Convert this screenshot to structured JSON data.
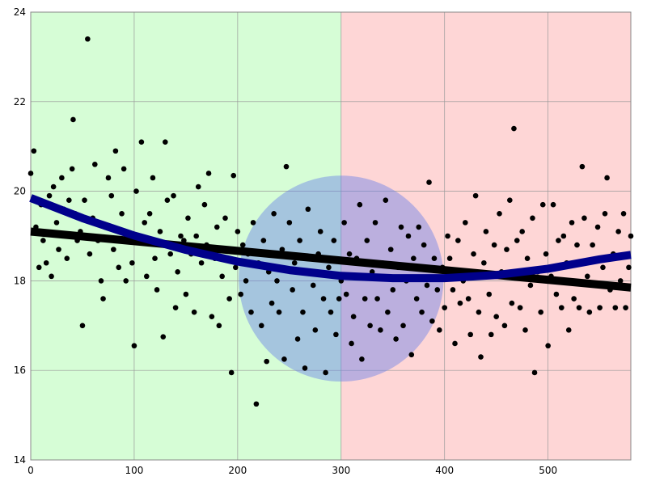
{
  "chart_data": {
    "type": "scatter",
    "xlim": [
      0,
      580
    ],
    "ylim": [
      14,
      24
    ],
    "xticks": [
      0,
      100,
      200,
      300,
      400,
      500
    ],
    "yticks": [
      14,
      16,
      18,
      20,
      22,
      24
    ],
    "grid": true,
    "regions": [
      {
        "xlim": [
          0,
          300
        ],
        "color": "#d6fdd6"
      },
      {
        "xlim": [
          300,
          580
        ],
        "color": "#fed6d6"
      }
    ],
    "circle": {
      "cx": 300,
      "cy": 18.05,
      "rx": 99,
      "ry": 2.3,
      "color": "#6a80e8",
      "opacity": 0.45
    },
    "points": {
      "color": "#000000",
      "x": [
        0,
        3,
        5,
        8,
        10,
        12,
        15,
        18,
        20,
        22,
        25,
        27,
        30,
        32,
        35,
        37,
        40,
        41,
        43,
        45,
        48,
        50,
        52,
        55,
        57,
        60,
        62,
        65,
        68,
        70,
        72,
        75,
        78,
        80,
        82,
        85,
        88,
        90,
        92,
        95,
        98,
        100,
        102,
        105,
        107,
        110,
        112,
        115,
        118,
        120,
        122,
        125,
        128,
        130,
        132,
        135,
        138,
        140,
        142,
        145,
        148,
        150,
        152,
        155,
        158,
        160,
        162,
        165,
        168,
        170,
        172,
        175,
        178,
        180,
        182,
        185,
        188,
        190,
        192,
        194,
        196,
        198,
        200,
        203,
        205,
        208,
        210,
        213,
        215,
        218,
        220,
        223,
        225,
        228,
        230,
        233,
        235,
        238,
        240,
        243,
        245,
        247,
        250,
        253,
        255,
        258,
        260,
        263,
        265,
        268,
        270,
        273,
        275,
        278,
        280,
        283,
        285,
        288,
        290,
        293,
        295,
        298,
        300,
        303,
        305,
        308,
        310,
        312,
        315,
        318,
        320,
        323,
        325,
        328,
        330,
        333,
        335,
        338,
        340,
        343,
        345,
        348,
        350,
        353,
        355,
        358,
        360,
        363,
        365,
        368,
        370,
        373,
        375,
        378,
        380,
        383,
        385,
        388,
        390,
        393,
        395,
        398,
        400,
        403,
        405,
        408,
        410,
        413,
        415,
        418,
        420,
        423,
        425,
        428,
        430,
        433,
        435,
        438,
        440,
        443,
        445,
        448,
        450,
        453,
        455,
        458,
        460,
        463,
        465,
        467,
        470,
        473,
        475,
        478,
        480,
        483,
        485,
        487,
        490,
        493,
        495,
        498,
        500,
        503,
        505,
        508,
        510,
        513,
        515,
        518,
        520,
        523,
        525,
        528,
        530,
        533,
        535,
        538,
        540,
        543,
        545,
        548,
        550,
        553,
        555,
        557,
        560,
        563,
        565,
        568,
        570,
        573,
        575,
        578,
        580
      ],
      "y": [
        20.4,
        20.9,
        19.2,
        18.3,
        19.7,
        18.9,
        18.4,
        19.9,
        18.1,
        20.1,
        19.3,
        18.7,
        20.3,
        19.6,
        18.5,
        19.8,
        20.5,
        21.6,
        19.5,
        18.9,
        19.1,
        17.0,
        19.8,
        23.4,
        18.6,
        19.4,
        20.6,
        18.9,
        18.0,
        17.6,
        19.2,
        20.3,
        19.9,
        18.7,
        20.9,
        18.3,
        19.5,
        20.5,
        18.0,
        19.0,
        18.4,
        16.55,
        20.0,
        18.9,
        21.1,
        19.3,
        18.1,
        19.5,
        20.3,
        18.5,
        17.8,
        19.1,
        16.75,
        21.1,
        19.8,
        18.6,
        19.9,
        17.4,
        18.2,
        19.0,
        18.9,
        17.7,
        19.4,
        18.6,
        17.3,
        19.0,
        20.1,
        18.4,
        19.7,
        18.8,
        20.4,
        17.2,
        18.5,
        19.2,
        17.0,
        18.1,
        19.4,
        18.7,
        17.6,
        15.95,
        20.35,
        18.3,
        19.1,
        17.7,
        18.8,
        18.0,
        18.6,
        17.3,
        19.3,
        15.25,
        18.4,
        17.0,
        18.9,
        16.2,
        18.2,
        17.5,
        19.5,
        18.0,
        17.3,
        18.7,
        16.25,
        20.55,
        19.3,
        17.8,
        18.4,
        16.7,
        18.9,
        17.3,
        16.05,
        19.6,
        18.2,
        17.9,
        16.9,
        18.6,
        19.1,
        17.6,
        15.95,
        18.3,
        17.3,
        18.9,
        16.8,
        17.6,
        18.0,
        19.3,
        17.7,
        18.6,
        16.6,
        17.2,
        18.5,
        19.7,
        16.25,
        17.6,
        18.9,
        17.0,
        18.2,
        19.3,
        17.6,
        16.9,
        18.4,
        19.8,
        17.3,
        18.7,
        17.8,
        16.7,
        18.3,
        19.2,
        17.0,
        18.0,
        19.0,
        16.35,
        18.5,
        17.6,
        19.2,
        17.3,
        18.8,
        17.9,
        20.2,
        17.1,
        18.5,
        17.8,
        16.9,
        18.3,
        17.4,
        19.0,
        18.5,
        17.8,
        16.6,
        18.9,
        17.5,
        18.0,
        19.3,
        17.6,
        16.8,
        18.6,
        19.9,
        17.3,
        16.3,
        18.4,
        19.1,
        17.7,
        16.8,
        18.8,
        17.2,
        19.5,
        18.2,
        17.0,
        18.7,
        19.8,
        17.5,
        21.4,
        18.9,
        17.4,
        19.1,
        16.9,
        18.5,
        17.9,
        19.4,
        15.95,
        18.2,
        17.3,
        19.7,
        18.6,
        16.55,
        18.1,
        19.7,
        17.7,
        18.9,
        17.4,
        19.0,
        18.4,
        16.9,
        19.3,
        17.6,
        18.8,
        17.4,
        20.55,
        19.4,
        18.1,
        17.3,
        18.8,
        17.9,
        19.2,
        17.4,
        18.3,
        19.5,
        20.3,
        17.8,
        18.6,
        17.4,
        19.1,
        18.0,
        19.5,
        17.4,
        18.3,
        19.0
      ]
    },
    "lines": [
      {
        "color": "#000000",
        "width": 10,
        "x": [
          0,
          580
        ],
        "y": [
          19.1,
          17.85
        ]
      },
      {
        "color": "#00008b",
        "width": 10,
        "x": [
          0,
          50,
          100,
          150,
          200,
          250,
          300,
          350,
          400,
          450,
          500,
          550,
          580
        ],
        "y": [
          19.85,
          19.4,
          19.01,
          18.69,
          18.43,
          18.24,
          18.11,
          18.06,
          18.06,
          18.13,
          18.27,
          18.48,
          18.58
        ]
      }
    ]
  }
}
